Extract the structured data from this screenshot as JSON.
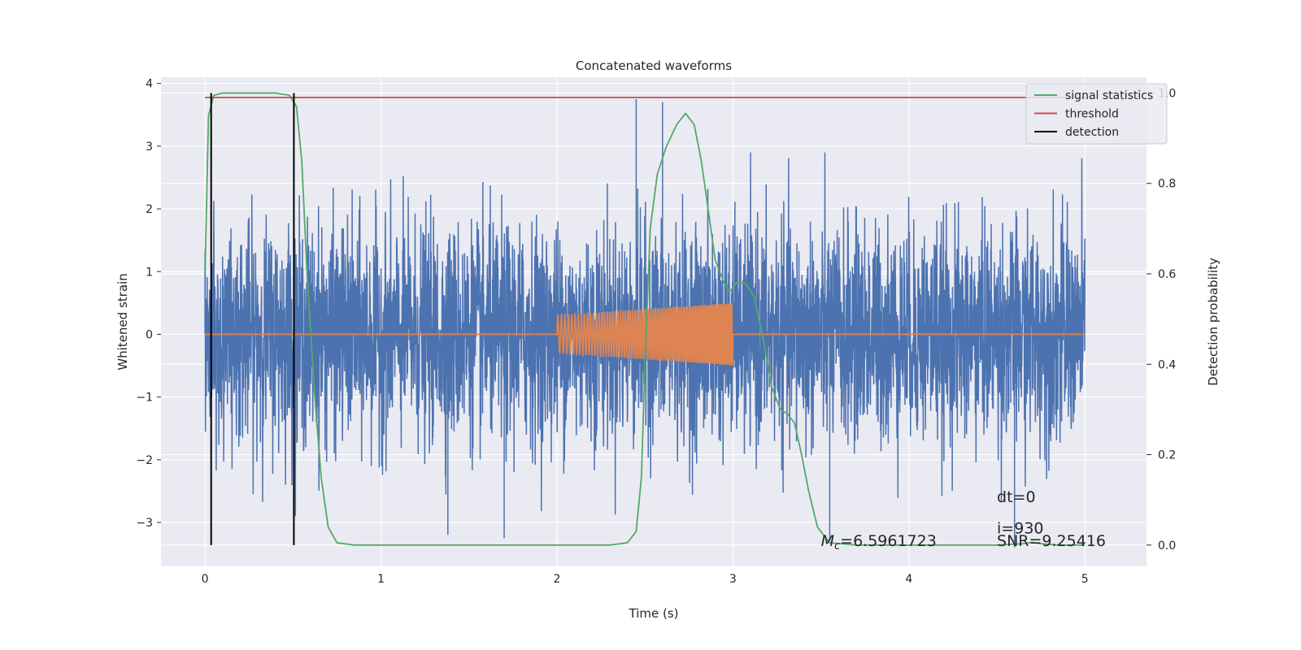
{
  "chart_data": {
    "type": "line",
    "title": "Concatenated waveforms",
    "xlabel": "Time (s)",
    "ylabel": "Whitened strain",
    "ylabel_right": "Detection probability",
    "xlim": [
      -0.25,
      5.35
    ],
    "ylim": [
      -3.7,
      4.1
    ],
    "ylim_right": [
      -0.047,
      1.035
    ],
    "xticks": [
      0,
      1,
      2,
      3,
      4,
      5
    ],
    "yticks": [
      -3,
      -2,
      -1,
      0,
      1,
      2,
      3,
      4
    ],
    "yticks_right": [
      0.0,
      0.2,
      0.4,
      0.6,
      0.8,
      1.0
    ],
    "grid": true,
    "legend_position": "top-right",
    "legend": [
      "signal statistics",
      "threshold",
      "detection"
    ],
    "colors": {
      "strain": "#4c72b0",
      "template": "#dd8452",
      "signal_statistics": "#55a868",
      "threshold": "#c44e52",
      "detection": "#000000",
      "background": "#eaeaf2",
      "grid": "#ffffff"
    },
    "series": [
      {
        "axis": "left",
        "x_range": [
          0,
          5
        ],
        "typical_range": [
          -2.6,
          2.6
        ],
        "extremes": {
          "max": 3.75,
          "min": -3.3
        }
      },
      {
        "axis": "left",
        "nonzero_x_range": [
          2.0,
          3.0
        ],
        "amplitude_start": 0.3,
        "amplitude_end": 0.5
      },
      {
        "name": "signal statistics",
        "axis": "right",
        "x": [
          0.0,
          0.02,
          0.05,
          0.1,
          0.2,
          0.3,
          0.4,
          0.48,
          0.52,
          0.55,
          0.58,
          0.62,
          0.66,
          0.7,
          0.75,
          0.85,
          1.0,
          1.5,
          2.0,
          2.3,
          2.4,
          2.45,
          2.48,
          2.5,
          2.53,
          2.57,
          2.62,
          2.68,
          2.73,
          2.78,
          2.82,
          2.86,
          2.9,
          2.95,
          2.98,
          3.02,
          3.07,
          3.12,
          3.17,
          3.22,
          3.27,
          3.31,
          3.35,
          3.39,
          3.43,
          3.48,
          3.55,
          3.7,
          4.0,
          4.5,
          4.65,
          4.7,
          4.75,
          4.85,
          5.0
        ],
        "y": [
          0.6,
          0.95,
          0.995,
          1.0,
          1.0,
          1.0,
          1.0,
          0.995,
          0.97,
          0.85,
          0.6,
          0.35,
          0.15,
          0.04,
          0.005,
          0.0,
          0.0,
          0.0,
          0.0,
          0.0,
          0.005,
          0.03,
          0.15,
          0.4,
          0.7,
          0.82,
          0.88,
          0.93,
          0.955,
          0.93,
          0.85,
          0.74,
          0.63,
          0.58,
          0.56,
          0.58,
          0.58,
          0.55,
          0.46,
          0.35,
          0.3,
          0.29,
          0.27,
          0.2,
          0.12,
          0.04,
          0.005,
          0.0,
          0.0,
          0.0,
          0.003,
          0.006,
          0.003,
          0.0,
          0.0
        ]
      },
      {
        "name": "threshold",
        "axis": "right",
        "x": [
          0,
          5
        ],
        "y": [
          0.99,
          0.99
        ]
      },
      {
        "name": "detection",
        "axis": "right",
        "x": [
          0.035,
          0.505
        ],
        "y_range": [
          0.0,
          1.0
        ]
      }
    ],
    "annotations": [
      {
        "text": "M",
        "subscript": "c",
        "value_text": "=6.5961723",
        "x": 3.5,
        "y": -3.3
      },
      {
        "text": "dt=0",
        "x": 4.5,
        "y": -2.6
      },
      {
        "text": "i=930",
        "x": 4.5,
        "y": -3.1
      },
      {
        "text": "SNR=9.25416",
        "x": 4.5,
        "y": -3.3
      }
    ]
  }
}
